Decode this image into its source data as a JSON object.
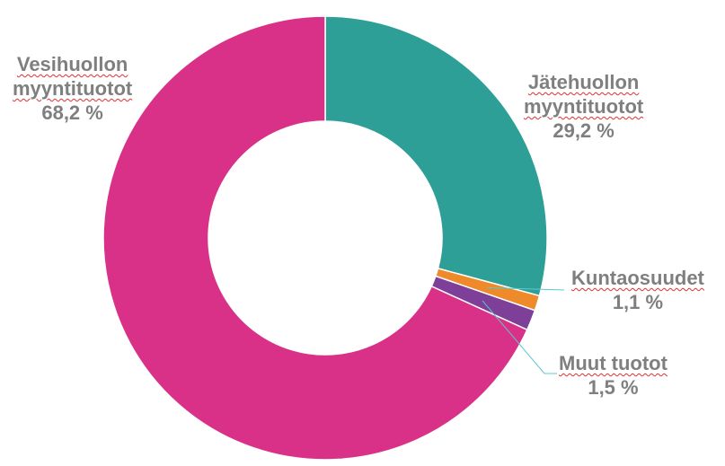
{
  "chart_data": {
    "type": "pie",
    "variant": "donut",
    "slices": [
      {
        "label_lines": [
          "Jätehuollon",
          "myyntituotot"
        ],
        "value": 29.2,
        "value_label": "29,2 %",
        "color": "#2e9f96"
      },
      {
        "label_lines": [
          "Kuntaosuudet"
        ],
        "value": 1.1,
        "value_label": "1,1 %",
        "color": "#ef8a2b"
      },
      {
        "label_lines": [
          "Muut tuotot"
        ],
        "value": 1.5,
        "value_label": "1,5 %",
        "color": "#7e3f98"
      },
      {
        "label_lines": [
          "Vesihuollon",
          "myyntituotot"
        ],
        "value": 68.2,
        "value_label": "68,2 %",
        "color": "#d93187"
      }
    ],
    "leader_line_color": "#5bc8d0",
    "label_color": "#7f7f7f"
  }
}
